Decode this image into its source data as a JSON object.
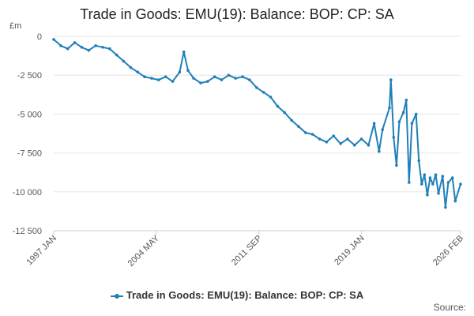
{
  "chart_data": {
    "type": "line",
    "title": "Trade in Goods: EMU(19): Balance: BOP: CP: SA",
    "ylabel": "£m",
    "xlabel": "",
    "ylim": [
      -12500,
      0
    ],
    "y_ticks": [
      "0",
      "-2 500",
      "-5 000",
      "-7 500",
      "-10 000",
      "-12 500"
    ],
    "y_tick_values": [
      0,
      -2500,
      -5000,
      -7500,
      -10000,
      -12500
    ],
    "x_ticks": [
      "1997 JAN",
      "2004 MAY",
      "2011 SEP",
      "2019 JAN",
      "2026 FEB"
    ],
    "x_tick_positions": [
      1997.0,
      2004.33,
      2011.67,
      2019.0,
      2026.08
    ],
    "xlim": [
      1997.0,
      2026.08
    ],
    "grid": true,
    "legend_position": "bottom",
    "color": "#1f7fb8",
    "series": [
      {
        "name": "Trade in Goods: EMU(19): Balance: BOP: CP: SA",
        "x": [
          1997.0,
          1997.5,
          1998.0,
          1998.5,
          1999.0,
          1999.5,
          2000.0,
          2000.5,
          2001.0,
          2001.5,
          2002.0,
          2002.5,
          2003.0,
          2003.5,
          2004.0,
          2004.5,
          2005.0,
          2005.5,
          2006.0,
          2006.3,
          2006.6,
          2007.0,
          2007.5,
          2008.0,
          2008.5,
          2009.0,
          2009.5,
          2010.0,
          2010.5,
          2011.0,
          2011.5,
          2012.0,
          2012.5,
          2013.0,
          2013.5,
          2014.0,
          2014.5,
          2015.0,
          2015.5,
          2016.0,
          2016.5,
          2017.0,
          2017.5,
          2018.0,
          2018.5,
          2019.0,
          2019.5,
          2019.9,
          2020.25,
          2020.5,
          2021.0,
          2021.1,
          2021.3,
          2021.5,
          2021.7,
          2022.0,
          2022.2,
          2022.4,
          2022.6,
          2022.9,
          2023.1,
          2023.3,
          2023.5,
          2023.7,
          2023.9,
          2024.1,
          2024.3,
          2024.5,
          2024.8,
          2025.0,
          2025.2,
          2025.5,
          2025.7,
          2026.08
        ],
        "values": [
          -200,
          -600,
          -800,
          -400,
          -700,
          -900,
          -600,
          -700,
          -800,
          -1200,
          -1600,
          -2000,
          -2300,
          -2600,
          -2700,
          -2800,
          -2600,
          -2900,
          -2300,
          -1000,
          -2200,
          -2700,
          -3000,
          -2900,
          -2600,
          -2800,
          -2500,
          -2700,
          -2600,
          -2800,
          -3300,
          -3600,
          -3900,
          -4500,
          -4900,
          -5400,
          -5800,
          -6200,
          -6300,
          -6600,
          -6800,
          -6400,
          -6900,
          -6600,
          -7000,
          -6600,
          -7000,
          -5600,
          -7400,
          -6000,
          -4600,
          -2800,
          -6500,
          -8300,
          -5500,
          -4900,
          -4100,
          -9400,
          -5600,
          -5000,
          -8000,
          -9500,
          -8900,
          -10200,
          -9100,
          -9500,
          -8900,
          -10100,
          -9000,
          -11000,
          -9400,
          -9100,
          -10600,
          -9500
        ]
      }
    ]
  },
  "legend": {
    "label": "Trade in Goods: EMU(19): Balance: BOP: CP: SA"
  },
  "footer": {
    "source_label": "Source:"
  }
}
